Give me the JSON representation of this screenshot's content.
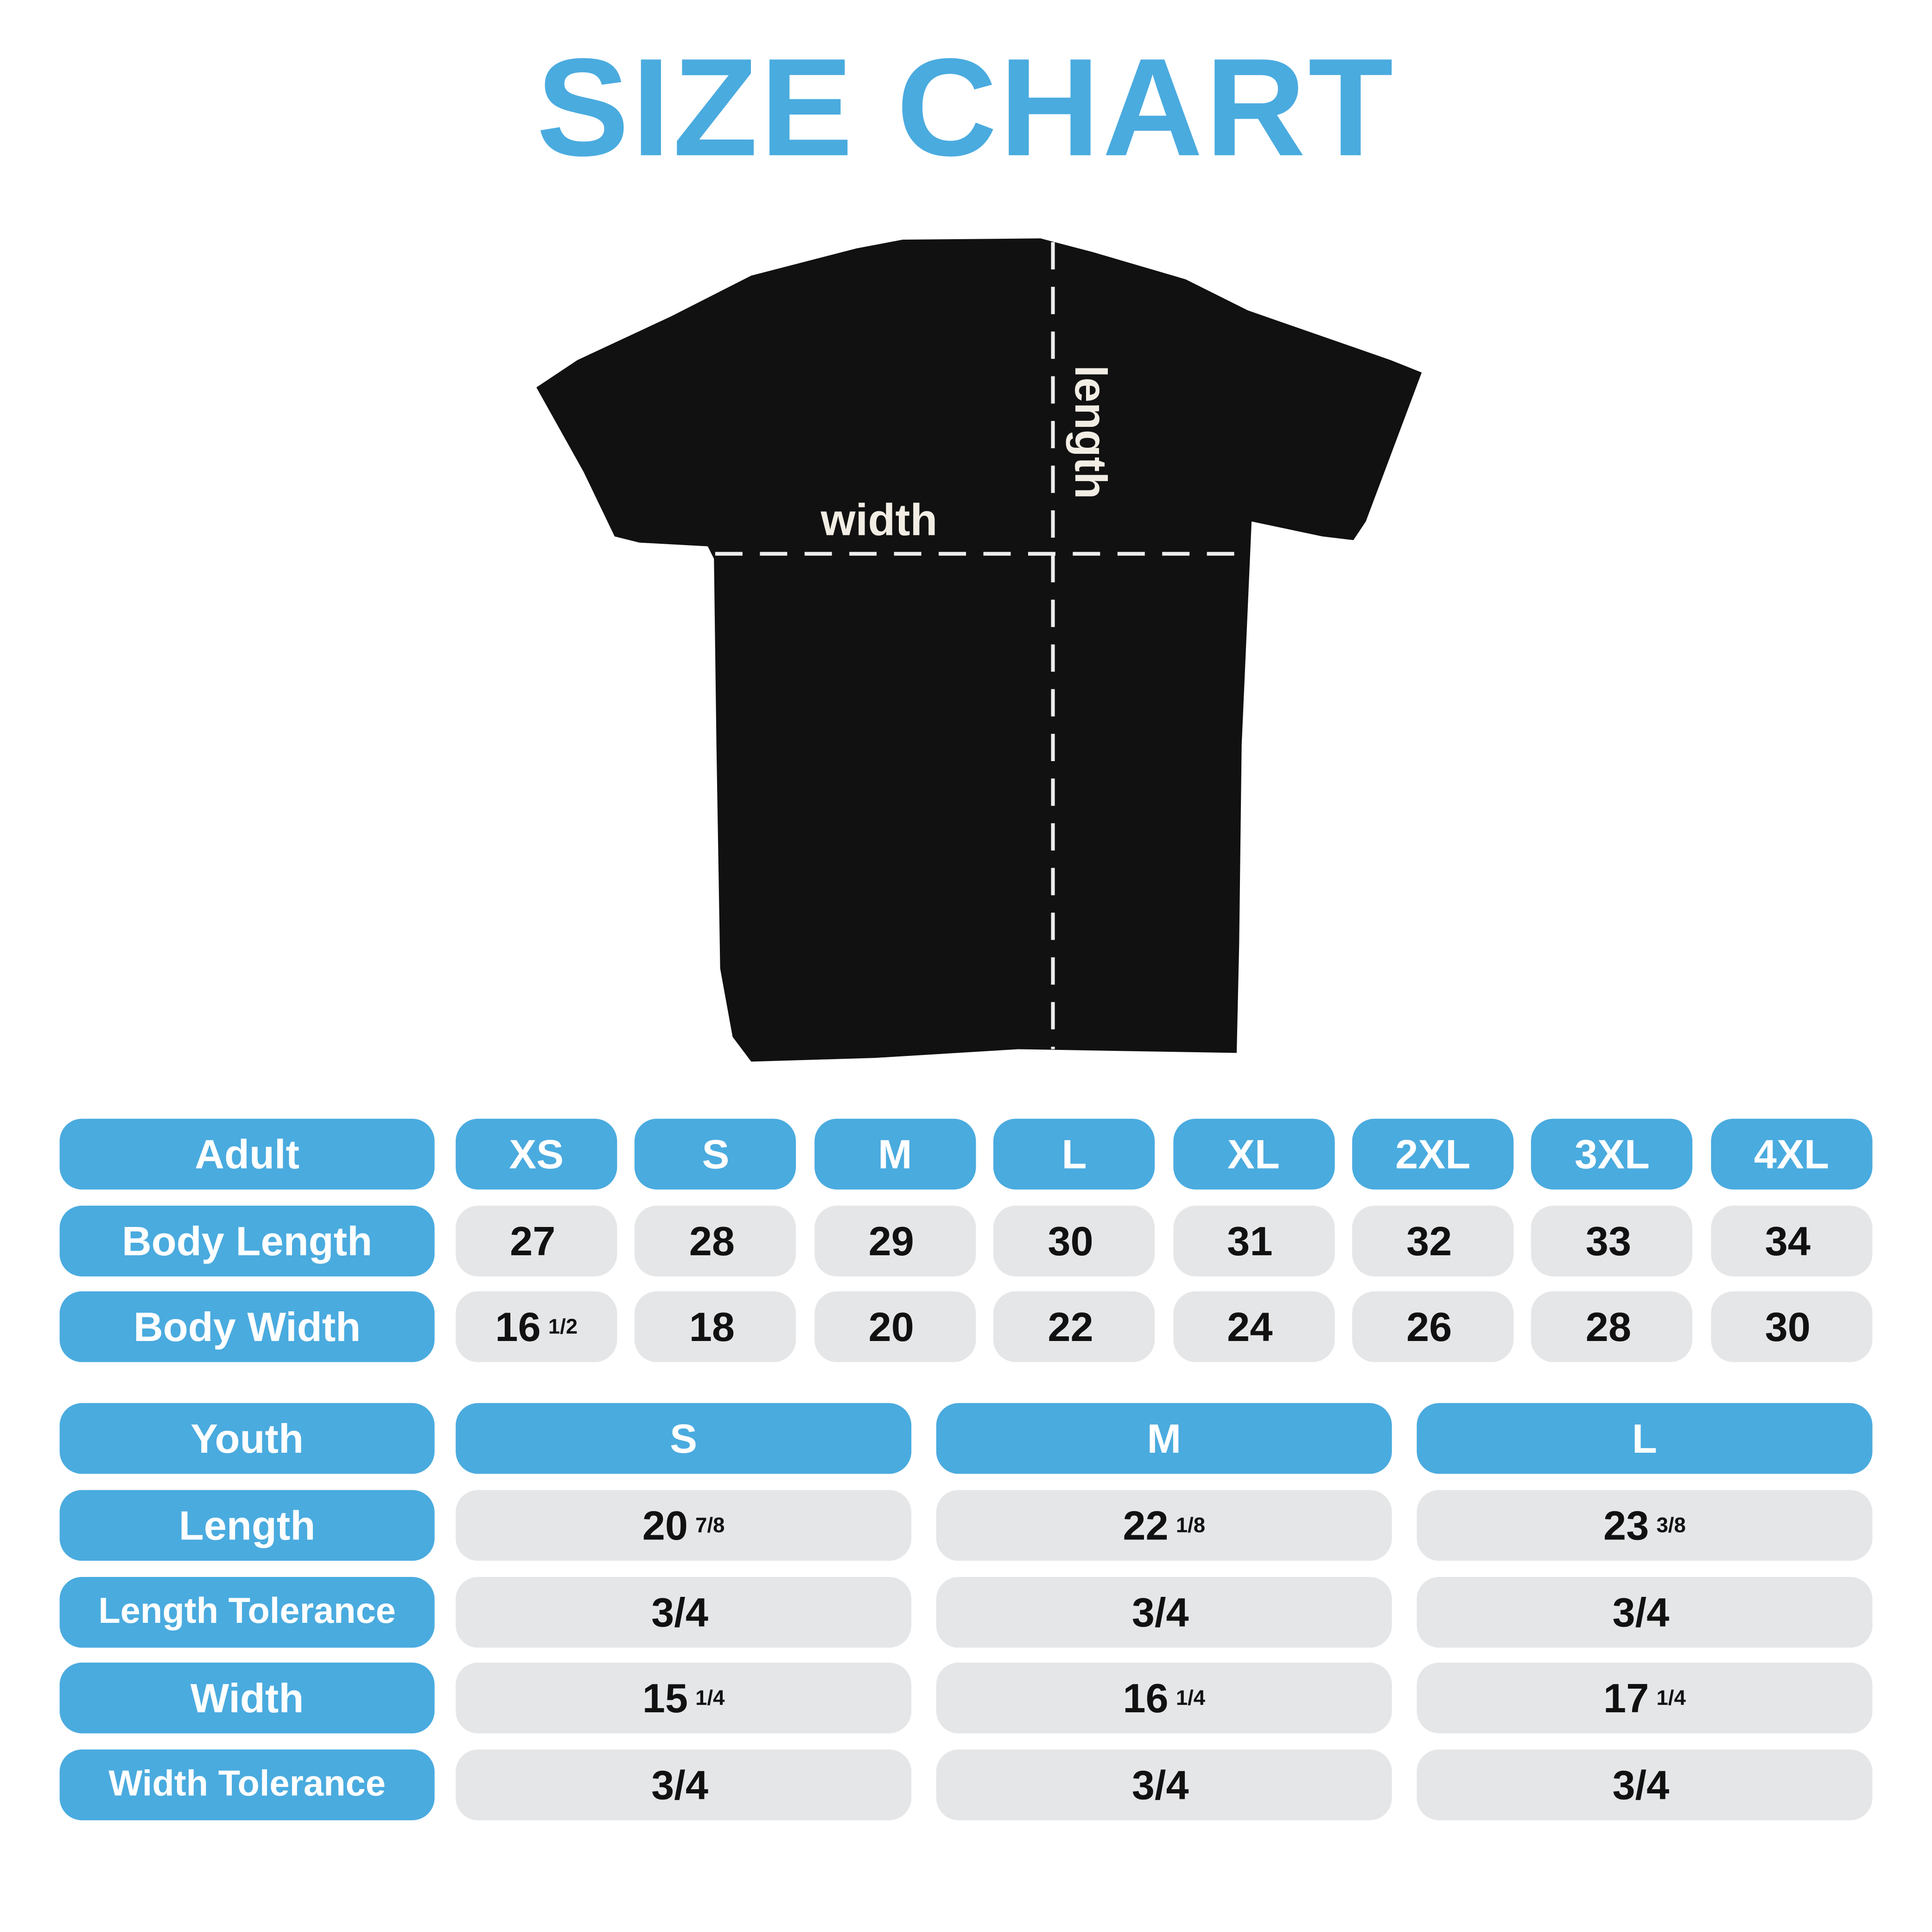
{
  "title": "SIZE CHART",
  "diagram": {
    "width_label": "width",
    "length_label": "length",
    "shirt_color": "#111111"
  },
  "colors": {
    "accent": "#4AABDF",
    "cell": "#E5E6E8"
  },
  "adult": {
    "header": "Adult",
    "sizes": [
      "XS",
      "S",
      "M",
      "L",
      "XL",
      "2XL",
      "3XL",
      "4XL"
    ],
    "rows": [
      {
        "label": "Body Length",
        "values": [
          {
            "whole": "27",
            "frac": ""
          },
          {
            "whole": "28",
            "frac": ""
          },
          {
            "whole": "29",
            "frac": ""
          },
          {
            "whole": "30",
            "frac": ""
          },
          {
            "whole": "31",
            "frac": ""
          },
          {
            "whole": "32",
            "frac": ""
          },
          {
            "whole": "33",
            "frac": ""
          },
          {
            "whole": "34",
            "frac": ""
          }
        ]
      },
      {
        "label": "Body Width",
        "values": [
          {
            "whole": "16",
            "frac": "1/2"
          },
          {
            "whole": "18",
            "frac": ""
          },
          {
            "whole": "20",
            "frac": ""
          },
          {
            "whole": "22",
            "frac": ""
          },
          {
            "whole": "24",
            "frac": ""
          },
          {
            "whole": "26",
            "frac": ""
          },
          {
            "whole": "28",
            "frac": ""
          },
          {
            "whole": "30",
            "frac": ""
          }
        ]
      }
    ]
  },
  "youth": {
    "header": "Youth",
    "sizes": [
      "S",
      "M",
      "L"
    ],
    "rows": [
      {
        "label": "Length",
        "values": [
          {
            "whole": "20",
            "frac": "7/8"
          },
          {
            "whole": "22",
            "frac": "1/8"
          },
          {
            "whole": "23",
            "frac": "3/8"
          }
        ]
      },
      {
        "label": "Length Tolerance",
        "values": [
          {
            "whole": "3/4",
            "frac": ""
          },
          {
            "whole": "3/4",
            "frac": ""
          },
          {
            "whole": "3/4",
            "frac": ""
          }
        ]
      },
      {
        "label": "Width",
        "values": [
          {
            "whole": "15",
            "frac": "1/4"
          },
          {
            "whole": "16",
            "frac": "1/4"
          },
          {
            "whole": "17",
            "frac": "1/4"
          }
        ]
      },
      {
        "label": "Width Tolerance",
        "values": [
          {
            "whole": "3/4",
            "frac": ""
          },
          {
            "whole": "3/4",
            "frac": ""
          },
          {
            "whole": "3/4",
            "frac": ""
          }
        ]
      }
    ]
  }
}
